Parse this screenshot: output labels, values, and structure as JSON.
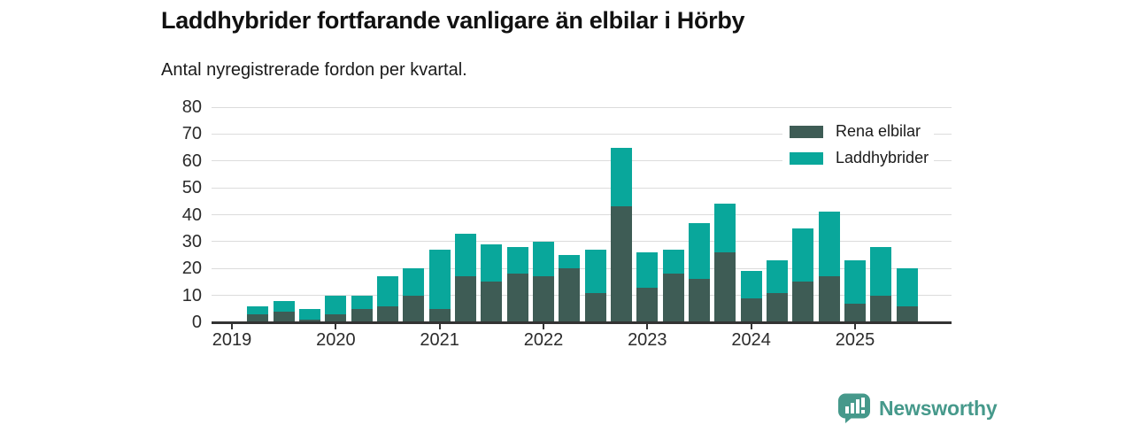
{
  "title": "Laddhybrider fortfarande vanligare än elbilar i Hörby",
  "subtitle": "Antal nyregistrerade fordon per kvartal.",
  "legend": {
    "items": [
      {
        "label": "Rena elbilar",
        "color": "#3e5c55"
      },
      {
        "label": "Laddhybrider",
        "color": "#09a79b"
      }
    ]
  },
  "branding": {
    "name": "Newsworthy",
    "icon": "newsworthy-chart-bubble-icon",
    "color": "#46998b"
  },
  "chart_data": {
    "type": "bar",
    "stacked": true,
    "title": "Laddhybrider fortfarande vanligare än elbilar i Hörby",
    "subtitle": "Antal nyregistrerade fordon per kvartal.",
    "xlabel": "",
    "ylabel": "",
    "ylim": [
      0,
      80
    ],
    "yticks": [
      0,
      10,
      20,
      30,
      40,
      50,
      60,
      70,
      80
    ],
    "xticks": [
      "2019",
      "2020",
      "2021",
      "2022",
      "2023",
      "2024",
      "2025"
    ],
    "grid": "horizontal",
    "legend_position": "top-right",
    "grid_color": "#dcdcdc",
    "axis_color": "#333333",
    "tick_text_color": "#2b2b2b",
    "categories": [
      "Q1 2019",
      "Q2 2019",
      "Q3 2019",
      "Q4 2019",
      "Q1 2020",
      "Q2 2020",
      "Q3 2020",
      "Q4 2020",
      "Q1 2021",
      "Q2 2021",
      "Q3 2021",
      "Q4 2021",
      "Q1 2022",
      "Q2 2022",
      "Q3 2022",
      "Q4 2022",
      "Q1 2023",
      "Q2 2023",
      "Q3 2023",
      "Q4 2023",
      "Q1 2024",
      "Q2 2024",
      "Q3 2024",
      "Q4 2024",
      "Q1 2025",
      "Q2 2025",
      "Q3 2025"
    ],
    "series": [
      {
        "name": "Rena elbilar",
        "color": "#3e5c55",
        "values": [
          0,
          3,
          4,
          1,
          3,
          5,
          6,
          10,
          5,
          17,
          15,
          18,
          17,
          20,
          11,
          43,
          13,
          18,
          16,
          26,
          9,
          11,
          15,
          17,
          7,
          10,
          6
        ]
      },
      {
        "name": "Laddhybrider",
        "color": "#09a79b",
        "values": [
          0,
          3,
          4,
          4,
          7,
          5,
          11,
          10,
          22,
          16,
          14,
          10,
          13,
          5,
          16,
          22,
          13,
          9,
          21,
          18,
          10,
          12,
          20,
          24,
          16,
          18,
          14
        ]
      }
    ]
  }
}
